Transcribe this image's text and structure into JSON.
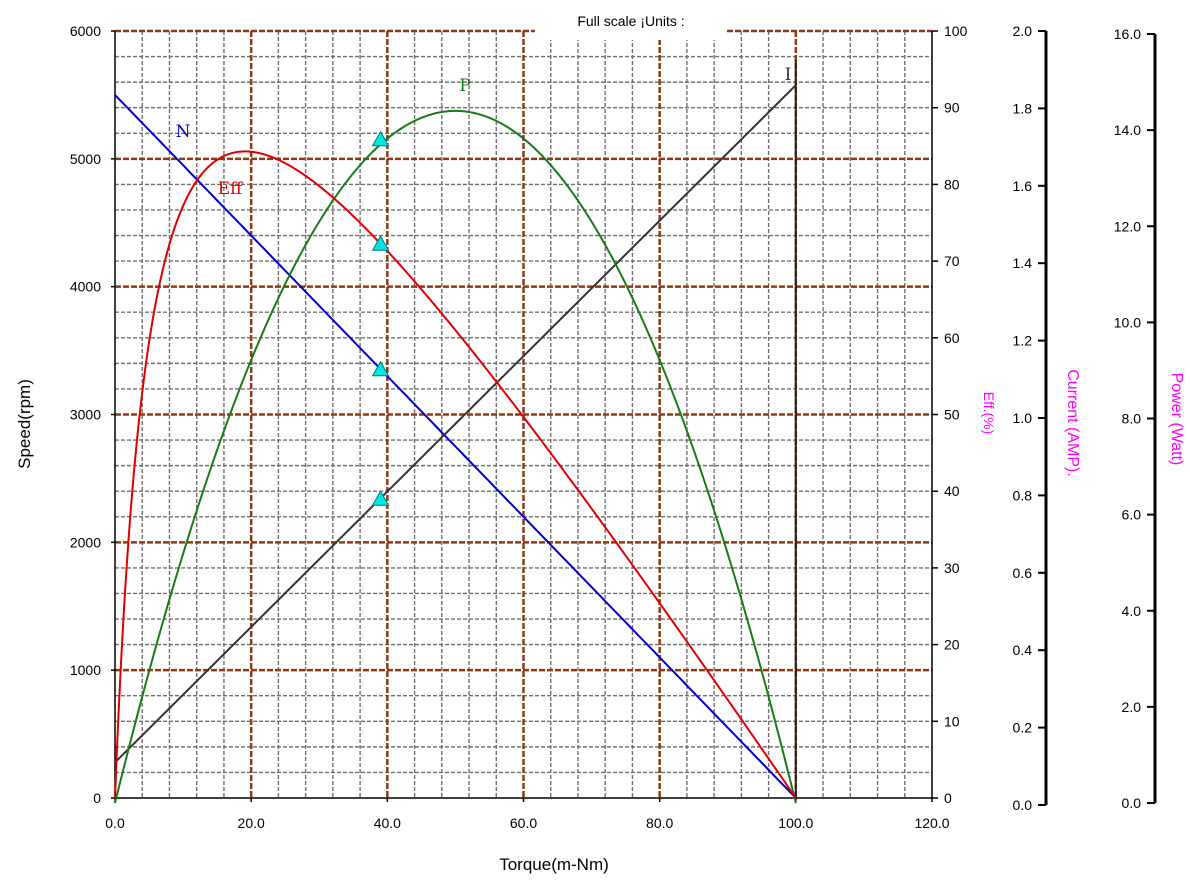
{
  "chart_data": {
    "type": "line",
    "title": "Full scale ¡Units :",
    "xlabel": "Torque(m-Nm)",
    "xlim": [
      0,
      120
    ],
    "x_ticks": [
      "0.0",
      "20.0",
      "40.0",
      "60.0",
      "80.0",
      "100.0",
      "120.0"
    ],
    "y_axes": [
      {
        "id": "speed",
        "label": "Speed(rpm)",
        "range": [
          0,
          6000
        ],
        "ticks": [
          "0",
          "1000",
          "2000",
          "3000",
          "4000",
          "5000",
          "6000"
        ]
      },
      {
        "id": "eff",
        "label": "Eff.(%)",
        "range": [
          0,
          100
        ],
        "ticks": [
          "0",
          "10",
          "20",
          "30",
          "40",
          "50",
          "60",
          "70",
          "80",
          "90",
          "100"
        ]
      },
      {
        "id": "current",
        "label": "Current (AMP).",
        "range": [
          0,
          2.0
        ],
        "ticks": [
          "0.0",
          "0.2",
          "0.4",
          "0.6",
          "0.8",
          "1.0",
          "1.2",
          "1.4",
          "1.6",
          "1.8",
          "2.0"
        ]
      },
      {
        "id": "power",
        "label": "Power (Watt)",
        "range": [
          0,
          16.0
        ],
        "ticks": [
          "0.0",
          "2.0",
          "4.0",
          "6.0",
          "8.0",
          "10.0",
          "12.0",
          "14.0",
          "16.0"
        ]
      }
    ],
    "grid": true,
    "series": [
      {
        "name": "N",
        "axis": "speed",
        "color": "#0000cc",
        "kind": "linear",
        "x": [
          0,
          100
        ],
        "y": [
          5500,
          0
        ]
      },
      {
        "name": "I",
        "axis": "current",
        "color": "#333333",
        "kind": "linear",
        "x": [
          0,
          100
        ],
        "y": [
          0.11,
          1.86
        ]
      },
      {
        "name": "P",
        "axis": "power",
        "color": "#1a7a1a",
        "kind": "parabola",
        "x_stall": 100,
        "peak_x": 50,
        "peak_y": 14.4
      },
      {
        "name": "Eff",
        "axis": "eff",
        "color": "#dd0000",
        "kind": "efficiency",
        "x_stall": 100,
        "i0_ratio": 0.059,
        "peak_x": 19.5,
        "peak_y": 84.3
      }
    ],
    "markers": [
      {
        "series": "P",
        "x": 39,
        "y": 13.8
      },
      {
        "series": "Eff",
        "x": 39,
        "y": 72.2
      },
      {
        "series": "N",
        "x": 39,
        "y": 3350
      },
      {
        "series": "I",
        "x": 39,
        "y": 0.79
      }
    ],
    "marker_color": "#00e5e5"
  }
}
